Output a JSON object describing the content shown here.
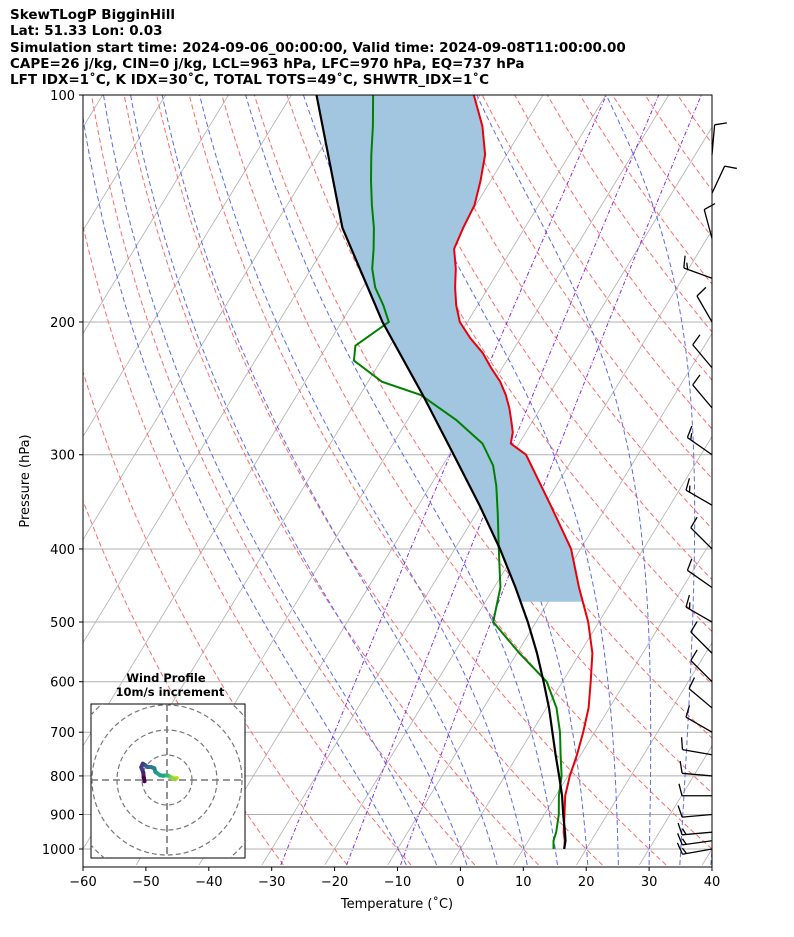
{
  "header": {
    "line1": "SkewTLogP BigginHill",
    "line2": "Lat: 51.33   Lon: 0.03",
    "line3": "Simulation start time: 2024-09-06_00:00:00, Valid time: 2024-09-08T11:00:00.00",
    "line4": "CAPE=26 j/kg, CIN=0 j/kg, LCL=963 hPa, LFC=970 hPa, EQ=737 hPa",
    "line5": "LFT IDX=1˚C, K IDX=30˚C, TOTAL TOTS=49˚C, SHWTR_IDX=1˚C"
  },
  "colors": {
    "temperature": "#e8000b",
    "dewpoint": "#008000",
    "parcel": "#000000",
    "cape_fill": "#a3c6e0",
    "dry_adiabat": "#ff6a6a",
    "moist_adiabat": "#5a6bf0",
    "mixing_ratio": "#8a2be2",
    "isotherm": "#b0b0b0"
  },
  "chart_data": [
    {
      "type": "line",
      "title": "",
      "xlabel": "Temperature (˚C)",
      "ylabel": "Pressure (hPa)",
      "xlim": [
        -60,
        40
      ],
      "ylim": [
        1050,
        100
      ],
      "y_scale": "log",
      "skew": true,
      "grid": true,
      "xticks": [
        "−60",
        "−50",
        "−40",
        "−30",
        "−20",
        "−10",
        "0",
        "10",
        "20",
        "30",
        "40"
      ],
      "yticks": [
        "100",
        "200",
        "300",
        "400",
        "500",
        "600",
        "700",
        "800",
        "900",
        "1000"
      ],
      "series": [
        {
          "key": "temperature",
          "points": [
            [
              1000,
              16.5
            ],
            [
              975,
              15.8
            ],
            [
              950,
              14.8
            ],
            [
              900,
              13.2
            ],
            [
              850,
              11.5
            ],
            [
              800,
              10.3
            ],
            [
              750,
              9.4
            ],
            [
              700,
              8.2
            ],
            [
              650,
              6.7
            ],
            [
              600,
              4.5
            ],
            [
              550,
              2.0
            ],
            [
              500,
              -1.7
            ],
            [
              450,
              -6.5
            ],
            [
              400,
              -11.5
            ],
            [
              350,
              -19.0
            ],
            [
              300,
              -27.8
            ],
            [
              290,
              -31.3
            ],
            [
              280,
              -32.1
            ],
            [
              270,
              -33.5
            ],
            [
              260,
              -35.0
            ],
            [
              250,
              -36.8
            ],
            [
              240,
              -39.0
            ],
            [
              230,
              -41.8
            ],
            [
              220,
              -44.5
            ],
            [
              210,
              -48.0
            ],
            [
              200,
              -51.2
            ],
            [
              190,
              -53.4
            ],
            [
              180,
              -55.3
            ],
            [
              170,
              -57.0
            ],
            [
              160,
              -59.2
            ],
            [
              150,
              -59.8
            ],
            [
              140,
              -60.2
            ],
            [
              130,
              -61.6
            ],
            [
              120,
              -63.4
            ],
            [
              110,
              -66.6
            ],
            [
              100,
              -71.0
            ]
          ]
        },
        {
          "key": "dewpoint",
          "points": [
            [
              1000,
              14.8
            ],
            [
              975,
              14.0
            ],
            [
              950,
              13.6
            ],
            [
              900,
              12.3
            ],
            [
              850,
              10.5
            ],
            [
              800,
              9.0
            ],
            [
              750,
              6.8
            ],
            [
              700,
              4.5
            ],
            [
              650,
              1.6
            ],
            [
              600,
              -2.5
            ],
            [
              550,
              -9.6
            ],
            [
              500,
              -16.8
            ],
            [
              450,
              -19.0
            ],
            [
              400,
              -23.0
            ],
            [
              360,
              -26.5
            ],
            [
              330,
              -29.5
            ],
            [
              310,
              -32.0
            ],
            [
              290,
              -35.8
            ],
            [
              270,
              -42.2
            ],
            [
              250,
              -50.3
            ],
            [
              240,
              -57.8
            ],
            [
              225,
              -64.3
            ],
            [
              215,
              -65.5
            ],
            [
              200,
              -62.5
            ],
            [
              190,
              -65.0
            ],
            [
              180,
              -68.0
            ],
            [
              170,
              -70.3
            ],
            [
              160,
              -72.0
            ],
            [
              150,
              -74.0
            ],
            [
              140,
              -76.5
            ],
            [
              130,
              -79.0
            ],
            [
              120,
              -81.5
            ],
            [
              110,
              -84.0
            ],
            [
              100,
              -87.0
            ]
          ]
        },
        {
          "key": "parcel",
          "points": [
            [
              1000,
              16.5
            ],
            [
              975,
              15.9
            ],
            [
              950,
              15.0
            ],
            [
              900,
              13.0
            ],
            [
              850,
              11.0
            ],
            [
              800,
              8.6
            ],
            [
              750,
              6.0
            ],
            [
              700,
              3.3
            ],
            [
              650,
              0.4
            ],
            [
              600,
              -3.0
            ],
            [
              550,
              -6.8
            ],
            [
              500,
              -11.3
            ],
            [
              450,
              -16.6
            ],
            [
              400,
              -22.8
            ],
            [
              350,
              -30.3
            ],
            [
              300,
              -39.3
            ],
            [
              250,
              -50.0
            ],
            [
              200,
              -63.5
            ],
            [
              150,
              -79.0
            ],
            [
              100,
              -96.0
            ]
          ]
        }
      ],
      "wind_barbs": [
        {
          "p": 1000,
          "speed_kt": 15,
          "dir_deg": 260
        },
        {
          "p": 975,
          "speed_kt": 15,
          "dir_deg": 262
        },
        {
          "p": 950,
          "speed_kt": 15,
          "dir_deg": 265
        },
        {
          "p": 900,
          "speed_kt": 10,
          "dir_deg": 265
        },
        {
          "p": 850,
          "speed_kt": 10,
          "dir_deg": 270
        },
        {
          "p": 800,
          "speed_kt": 10,
          "dir_deg": 275
        },
        {
          "p": 750,
          "speed_kt": 10,
          "dir_deg": 280
        },
        {
          "p": 700,
          "speed_kt": 10,
          "dir_deg": 300
        },
        {
          "p": 650,
          "speed_kt": 10,
          "dir_deg": 310
        },
        {
          "p": 600,
          "speed_kt": 10,
          "dir_deg": 315
        },
        {
          "p": 550,
          "speed_kt": 10,
          "dir_deg": 315
        },
        {
          "p": 500,
          "speed_kt": 15,
          "dir_deg": 300
        },
        {
          "p": 450,
          "speed_kt": 10,
          "dir_deg": 305
        },
        {
          "p": 400,
          "speed_kt": 10,
          "dir_deg": 315
        },
        {
          "p": 350,
          "speed_kt": 15,
          "dir_deg": 300
        },
        {
          "p": 300,
          "speed_kt": 15,
          "dir_deg": 305
        },
        {
          "p": 260,
          "speed_kt": 10,
          "dir_deg": 320
        },
        {
          "p": 230,
          "speed_kt": 10,
          "dir_deg": 320
        },
        {
          "p": 200,
          "speed_kt": 10,
          "dir_deg": 330
        },
        {
          "p": 175,
          "speed_kt": 15,
          "dir_deg": 290
        },
        {
          "p": 155,
          "speed_kt": 10,
          "dir_deg": 345
        },
        {
          "p": 135,
          "speed_kt": 10,
          "dir_deg": 25
        },
        {
          "p": 120,
          "speed_kt": 10,
          "dir_deg": 5
        }
      ]
    },
    {
      "type": "scatter",
      "title": "Wind Profile\n10m/s increment",
      "polar": true,
      "rings_ms": [
        10,
        20,
        30,
        40
      ],
      "points_ms": [
        [
          1.3,
          1.0
        ],
        [
          2.6,
          1.0
        ],
        [
          3.9,
          0.8
        ],
        [
          3.2,
          0.3
        ],
        [
          2.2,
          0.7
        ],
        [
          0.9,
          1.5
        ],
        [
          0.0,
          1.9
        ],
        [
          -1.5,
          1.7
        ],
        [
          -2.8,
          1.9
        ],
        [
          -4.6,
          3.2
        ],
        [
          -5.1,
          4.7
        ],
        [
          -6.4,
          5.2
        ],
        [
          -7.8,
          5.2
        ],
        [
          -8.8,
          6.0
        ],
        [
          -9.7,
          6.5
        ],
        [
          -10.3,
          5.1
        ],
        [
          -9.5,
          3.0
        ],
        [
          -9.3,
          1.0
        ],
        [
          -9.0,
          -0.5
        ]
      ]
    }
  ]
}
